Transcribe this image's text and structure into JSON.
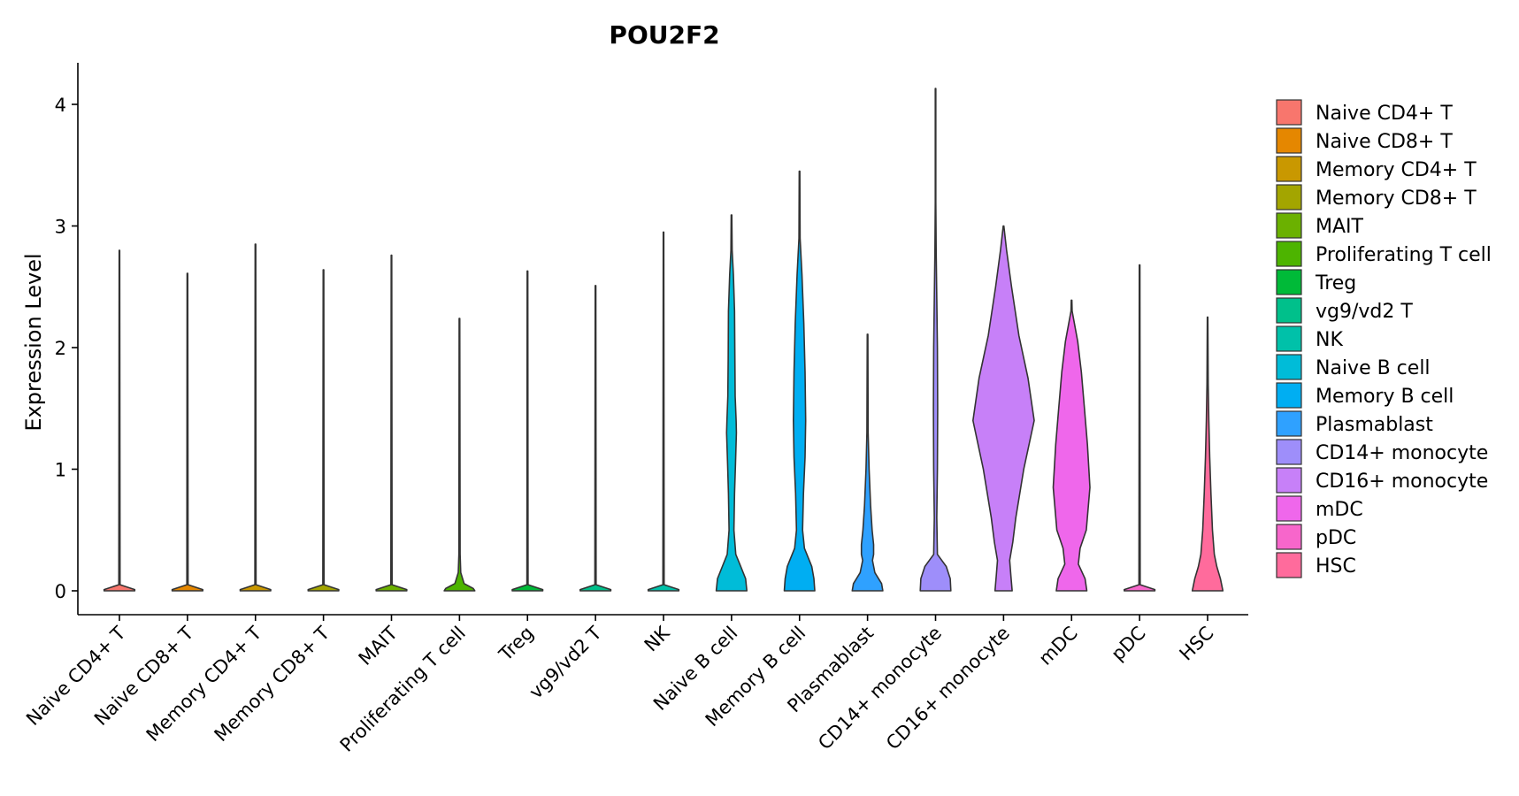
{
  "chart_data": {
    "type": "violin",
    "title": "POU2F2",
    "xlabel": "",
    "ylabel": "Expression Level",
    "ylim": [
      -0.2,
      4.35
    ],
    "yticks": [
      0,
      1,
      2,
      3,
      4
    ],
    "ytick_labels": [
      "0",
      "1",
      "2",
      "3",
      "4"
    ],
    "legend_position": "right",
    "categories": [
      "Naive CD4+ T",
      "Naive CD8+ T",
      "Memory CD4+ T",
      "Memory CD8+ T",
      "MAIT",
      "Proliferating T cell",
      "Treg",
      "vg9/vd2 T",
      "NK",
      "Naive B cell",
      "Memory B cell",
      "Plasmablast",
      "CD14+ monocyte",
      "CD16+ monocyte",
      "mDC",
      "pDC",
      "HSC"
    ],
    "colors": [
      "#F8766D",
      "#E58700",
      "#C99800",
      "#A3A500",
      "#6BB100",
      "#00BA38",
      "#00BF7D",
      "#00C0AF",
      "#00BCD8",
      "#00B0F6",
      "#619CFF",
      "#B983FF",
      "#E76BF3",
      "#FD61D1",
      "#FF67A4",
      "#F8766D",
      "#E58700"
    ],
    "series": [
      {
        "name": "Naive CD4+ T",
        "color": "#F8766D",
        "max": 2.8,
        "profile": [
          [
            0,
            0.5
          ],
          [
            0.01,
            0.5
          ],
          [
            0.05,
            0.02
          ],
          [
            2.8,
            0.01
          ]
        ]
      },
      {
        "name": "Naive CD8+ T",
        "color": "#E58700",
        "max": 2.61,
        "profile": [
          [
            0,
            0.5
          ],
          [
            0.01,
            0.5
          ],
          [
            0.05,
            0.02
          ],
          [
            2.61,
            0.01
          ]
        ]
      },
      {
        "name": "Memory CD4+ T",
        "color": "#C99800",
        "max": 2.85,
        "profile": [
          [
            0,
            0.5
          ],
          [
            0.01,
            0.5
          ],
          [
            0.05,
            0.02
          ],
          [
            2.85,
            0.01
          ]
        ]
      },
      {
        "name": "Memory CD8+ T",
        "color": "#A3A500",
        "max": 2.64,
        "profile": [
          [
            0,
            0.5
          ],
          [
            0.01,
            0.5
          ],
          [
            0.05,
            0.02
          ],
          [
            2.64,
            0.01
          ]
        ]
      },
      {
        "name": "MAIT",
        "color": "#6BB100",
        "max": 2.76,
        "profile": [
          [
            0,
            0.5
          ],
          [
            0.01,
            0.5
          ],
          [
            0.05,
            0.02
          ],
          [
            2.76,
            0.01
          ]
        ]
      },
      {
        "name": "Proliferating T cell",
        "color": "#4DB400",
        "max": 2.24,
        "profile": [
          [
            0,
            0.5
          ],
          [
            0.02,
            0.45
          ],
          [
            0.06,
            0.15
          ],
          [
            0.15,
            0.04
          ],
          [
            0.3,
            0.02
          ],
          [
            2.24,
            0.01
          ]
        ]
      },
      {
        "name": "Treg",
        "color": "#00BA38",
        "max": 2.63,
        "profile": [
          [
            0,
            0.5
          ],
          [
            0.01,
            0.5
          ],
          [
            0.05,
            0.02
          ],
          [
            2.63,
            0.01
          ]
        ]
      },
      {
        "name": "vg9/vd2 T",
        "color": "#00C08B",
        "max": 2.51,
        "profile": [
          [
            0,
            0.5
          ],
          [
            0.01,
            0.5
          ],
          [
            0.05,
            0.02
          ],
          [
            2.51,
            0.01
          ]
        ]
      },
      {
        "name": "NK",
        "color": "#00C1A9",
        "max": 2.95,
        "profile": [
          [
            0,
            0.5
          ],
          [
            0.01,
            0.5
          ],
          [
            0.05,
            0.02
          ],
          [
            2.95,
            0.01
          ]
        ]
      },
      {
        "name": "Naive B cell",
        "color": "#00BCD8",
        "max": 3.09,
        "profile": [
          [
            0,
            0.5
          ],
          [
            0.1,
            0.46
          ],
          [
            0.2,
            0.3
          ],
          [
            0.3,
            0.14
          ],
          [
            0.5,
            0.08
          ],
          [
            0.8,
            0.1
          ],
          [
            1.05,
            0.13
          ],
          [
            1.3,
            0.16
          ],
          [
            1.4,
            0.15
          ],
          [
            1.6,
            0.12
          ],
          [
            1.9,
            0.11
          ],
          [
            2.3,
            0.1
          ],
          [
            2.6,
            0.06
          ],
          [
            2.8,
            0.02
          ],
          [
            3.09,
            0.01
          ]
        ]
      },
      {
        "name": "Memory B cell",
        "color": "#00AEF2",
        "max": 3.45,
        "profile": [
          [
            0,
            0.5
          ],
          [
            0.1,
            0.47
          ],
          [
            0.2,
            0.4
          ],
          [
            0.35,
            0.16
          ],
          [
            0.5,
            0.1
          ],
          [
            0.8,
            0.13
          ],
          [
            1.1,
            0.18
          ],
          [
            1.4,
            0.2
          ],
          [
            1.8,
            0.18
          ],
          [
            2.2,
            0.14
          ],
          [
            2.6,
            0.08
          ],
          [
            2.9,
            0.02
          ],
          [
            3.45,
            0.01
          ]
        ]
      },
      {
        "name": "Plasmablast",
        "color": "#2FA1FF",
        "max": 2.11,
        "profile": [
          [
            0,
            0.5
          ],
          [
            0.06,
            0.46
          ],
          [
            0.15,
            0.24
          ],
          [
            0.25,
            0.16
          ],
          [
            0.3,
            0.2
          ],
          [
            0.38,
            0.2
          ],
          [
            0.5,
            0.15
          ],
          [
            0.7,
            0.1
          ],
          [
            1.0,
            0.05
          ],
          [
            1.3,
            0.02
          ],
          [
            2.11,
            0.01
          ]
        ]
      },
      {
        "name": "CD14+ monocyte",
        "color": "#9E8EFA",
        "max": 4.13,
        "profile": [
          [
            0,
            0.5
          ],
          [
            0.1,
            0.48
          ],
          [
            0.2,
            0.35
          ],
          [
            0.3,
            0.06
          ],
          [
            0.6,
            0.04
          ],
          [
            1.0,
            0.06
          ],
          [
            1.5,
            0.07
          ],
          [
            2.0,
            0.06
          ],
          [
            2.4,
            0.04
          ],
          [
            2.8,
            0.02
          ],
          [
            3.2,
            0.01
          ],
          [
            4.13,
            0.01
          ]
        ]
      },
      {
        "name": "CD16+ monocyte",
        "color": "#C780F8",
        "max": 3.0,
        "profile": [
          [
            0,
            0.28
          ],
          [
            0.12,
            0.24
          ],
          [
            0.25,
            0.2
          ],
          [
            0.4,
            0.3
          ],
          [
            0.6,
            0.4
          ],
          [
            1.0,
            0.66
          ],
          [
            1.4,
            1.0
          ],
          [
            1.75,
            0.8
          ],
          [
            2.1,
            0.5
          ],
          [
            2.5,
            0.26
          ],
          [
            2.8,
            0.1
          ],
          [
            3.0,
            0.01
          ]
        ]
      },
      {
        "name": "mDC",
        "color": "#EF67EB",
        "max": 2.39,
        "profile": [
          [
            0,
            0.5
          ],
          [
            0.1,
            0.44
          ],
          [
            0.22,
            0.22
          ],
          [
            0.35,
            0.28
          ],
          [
            0.5,
            0.48
          ],
          [
            0.85,
            0.6
          ],
          [
            1.2,
            0.52
          ],
          [
            1.5,
            0.42
          ],
          [
            1.8,
            0.32
          ],
          [
            2.05,
            0.2
          ],
          [
            2.3,
            0.02
          ],
          [
            2.39,
            0.01
          ]
        ]
      },
      {
        "name": "pDC",
        "color": "#F766CB",
        "max": 2.68,
        "profile": [
          [
            0,
            0.5
          ],
          [
            0.01,
            0.5
          ],
          [
            0.05,
            0.02
          ],
          [
            2.68,
            0.01
          ]
        ]
      },
      {
        "name": "HSC",
        "color": "#FF6B9C",
        "max": 2.25,
        "profile": [
          [
            0,
            0.5
          ],
          [
            0.1,
            0.42
          ],
          [
            0.2,
            0.3
          ],
          [
            0.3,
            0.22
          ],
          [
            0.5,
            0.16
          ],
          [
            0.8,
            0.11
          ],
          [
            1.1,
            0.07
          ],
          [
            1.4,
            0.04
          ],
          [
            1.7,
            0.02
          ],
          [
            2.25,
            0.01
          ]
        ]
      }
    ]
  }
}
